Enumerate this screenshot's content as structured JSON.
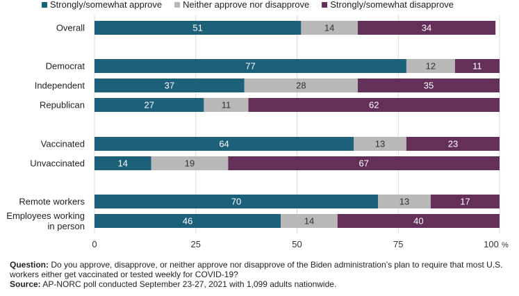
{
  "colors": {
    "approve": "#1c6079",
    "neither": "#b8b8b8",
    "disapprove": "#64305a"
  },
  "chart_data": {
    "type": "bar",
    "orientation": "horizontal",
    "stacked": true,
    "xlim": [
      0,
      100
    ],
    "xticks": [
      "0",
      "25",
      "50",
      "75",
      "100"
    ],
    "x_unit": "%",
    "legend_position": "top",
    "categories": [
      "Overall",
      "Democrat",
      "Independent",
      "Republican",
      "Vaccinated",
      "Unvaccinated",
      "Remote workers",
      "Employees working in person"
    ],
    "series": [
      {
        "name": "Strongly/somewhat approve",
        "values": [
          51,
          77,
          37,
          27,
          64,
          14,
          70,
          46
        ]
      },
      {
        "name": "Neither approve nor disapprove",
        "values": [
          14,
          12,
          28,
          11,
          13,
          19,
          13,
          14
        ]
      },
      {
        "name": "Strongly/somewhat disapprove",
        "values": [
          34,
          11,
          35,
          62,
          23,
          67,
          17,
          40
        ]
      }
    ]
  },
  "footnote": {
    "question_label": "Question:",
    "question_text": " Do you approve, disapprove, or neither approve nor disapprove of the Biden administration’s plan to require that most U.S. workers either get vaccinated or tested weekly for COVID-19?",
    "source_label": "Source:",
    "source_text": " AP-NORC poll conducted September 23-27, 2021 with 1,099 adults nationwide."
  }
}
